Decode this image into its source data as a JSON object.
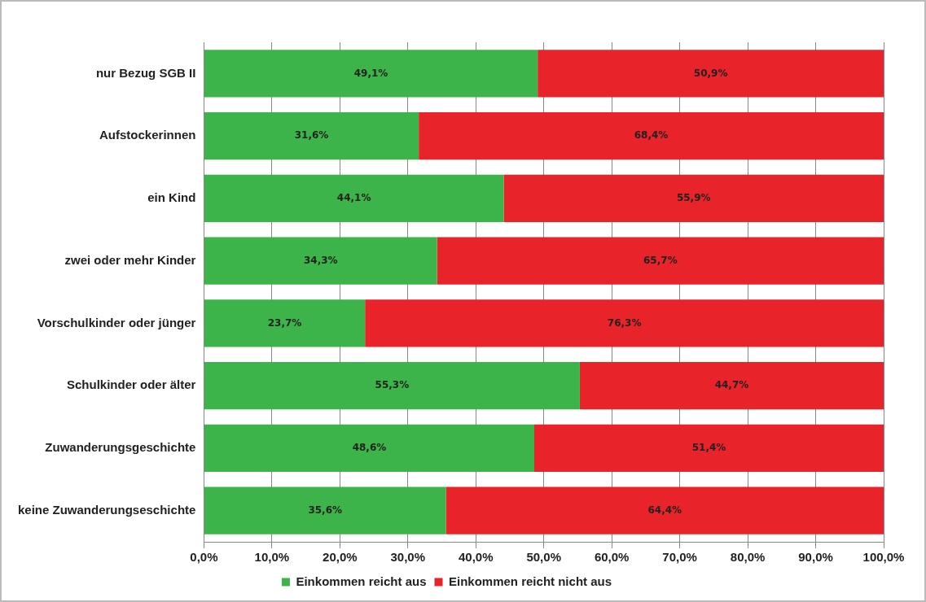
{
  "chart_data": {
    "type": "bar",
    "orientation": "horizontal",
    "stacked": true,
    "categories": [
      "nur Bezug SGB II",
      "Aufstockerinnen",
      "ein Kind",
      "zwei oder mehr Kinder",
      "Vorschulkinder oder jünger",
      "Schulkinder oder älter",
      "Zuwanderungsgeschichte",
      "keine Zuwanderungseschichte"
    ],
    "series": [
      {
        "name": "Einkommen reicht aus",
        "color": "#3cb44a",
        "values": [
          49.1,
          31.6,
          44.1,
          34.3,
          23.7,
          55.3,
          48.6,
          35.6
        ],
        "value_labels": [
          "49,1%",
          "31,6%",
          "44,1%",
          "34,3%",
          "23,7%",
          "55,3%",
          "48,6%",
          "35,6%"
        ]
      },
      {
        "name": "Einkommen reicht nicht aus",
        "color": "#e8232a",
        "values": [
          50.9,
          68.4,
          55.9,
          65.7,
          76.3,
          44.7,
          51.4,
          64.4
        ],
        "value_labels": [
          "50,9%",
          "68,4%",
          "55,9%",
          "65,7%",
          "76,3%",
          "44,7%",
          "51,4%",
          "64,4%"
        ]
      }
    ],
    "xlim": [
      0,
      100
    ],
    "xticks": [
      {
        "value": 0,
        "label": "0,0%"
      },
      {
        "value": 10,
        "label": "10,0%"
      },
      {
        "value": 20,
        "label": "20,0%"
      },
      {
        "value": 30,
        "label": "30,0%"
      },
      {
        "value": 40,
        "label": "40,0%"
      },
      {
        "value": 50,
        "label": "50,0%"
      },
      {
        "value": 60,
        "label": "60,0%"
      },
      {
        "value": 70,
        "label": "70,0%"
      },
      {
        "value": 80,
        "label": "80,0%"
      },
      {
        "value": 90,
        "label": "90,0%"
      },
      {
        "value": 100,
        "label": "100,0%"
      }
    ],
    "grid": "x",
    "legend": "bottom"
  }
}
